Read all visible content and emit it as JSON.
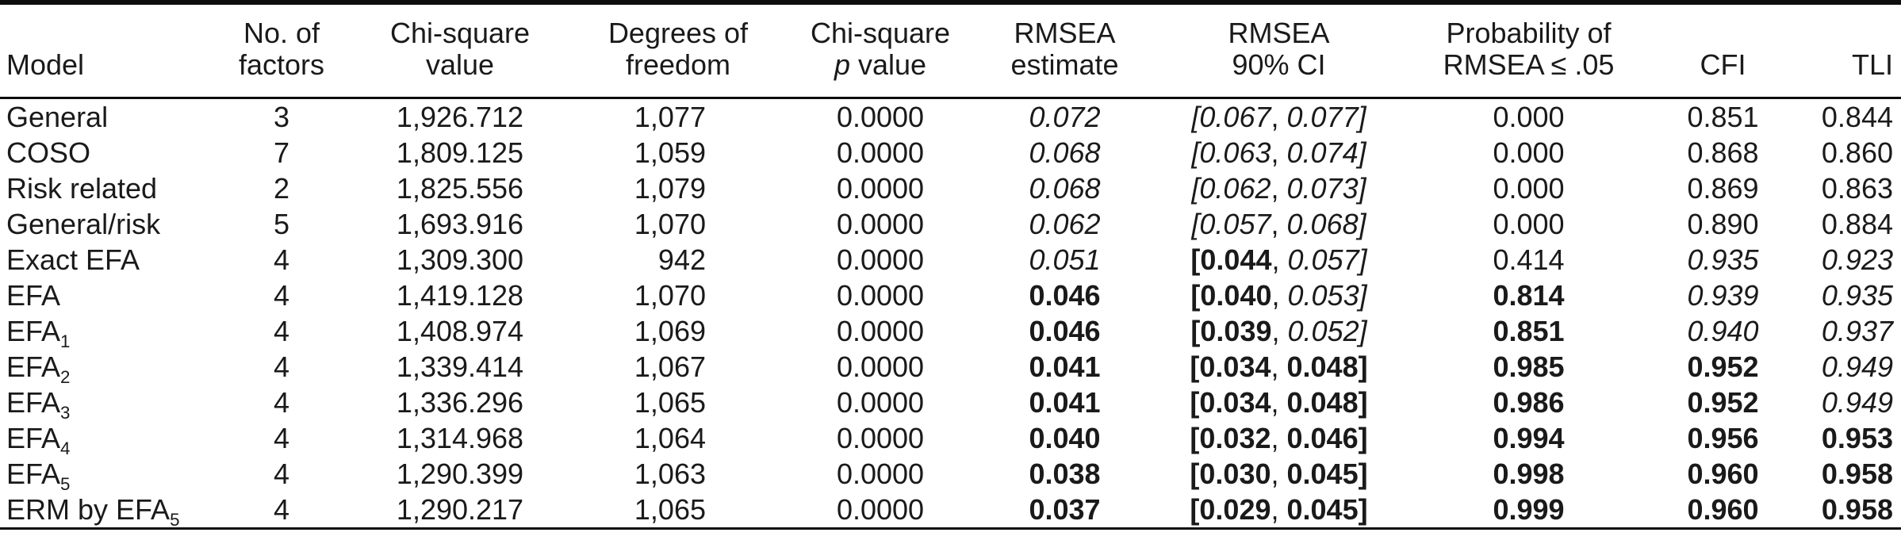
{
  "table": {
    "columns": [
      {
        "id": "model",
        "line1": "",
        "line2": "Model"
      },
      {
        "id": "factors",
        "line1": "No. of",
        "line2": "factors"
      },
      {
        "id": "chi_square",
        "line1": "Chi-square",
        "line2": "value"
      },
      {
        "id": "df",
        "line1": "Degrees of",
        "line2": "freedom"
      },
      {
        "id": "p",
        "line1": "Chi-square",
        "line2_italic": "p",
        "line2": " value"
      },
      {
        "id": "rmsea",
        "line1": "RMSEA",
        "line2": "estimate"
      },
      {
        "id": "ci",
        "line1": "RMSEA",
        "line2": "90% CI"
      },
      {
        "id": "prob",
        "line1": "Probability of",
        "line2": "RMSEA ≤ .05"
      },
      {
        "id": "cfi",
        "line1": "",
        "line2": "CFI"
      },
      {
        "id": "tli",
        "line1": "",
        "line2": "TLI"
      }
    ],
    "rows": [
      {
        "model": "General",
        "model_sub": "",
        "factors": "3",
        "chi_square": "1,926.712",
        "df": "1,077",
        "p": "0.0000",
        "rmsea": "0.072",
        "rmsea_style": "italic",
        "ci_low": "[0.067",
        "ci_low_style": "italic",
        "ci_sep": ", ",
        "ci_high": "0.077]",
        "ci_high_style": "italic",
        "prob": "0.000",
        "prob_style": "normal",
        "cfi": "0.851",
        "cfi_style": "normal",
        "tli": "0.844",
        "tli_style": "normal"
      },
      {
        "model": "COSO",
        "model_sub": "",
        "factors": "7",
        "chi_square": "1,809.125",
        "df": "1,059",
        "p": "0.0000",
        "rmsea": "0.068",
        "rmsea_style": "italic",
        "ci_low": "[0.063",
        "ci_low_style": "italic",
        "ci_sep": ", ",
        "ci_high": "0.074]",
        "ci_high_style": "italic",
        "prob": "0.000",
        "prob_style": "normal",
        "cfi": "0.868",
        "cfi_style": "normal",
        "tli": "0.860",
        "tli_style": "normal"
      },
      {
        "model": "Risk related",
        "model_sub": "",
        "factors": "2",
        "chi_square": "1,825.556",
        "df": "1,079",
        "p": "0.0000",
        "rmsea": "0.068",
        "rmsea_style": "italic",
        "ci_low": "[0.062",
        "ci_low_style": "italic",
        "ci_sep": ", ",
        "ci_high": "0.073]",
        "ci_high_style": "italic",
        "prob": "0.000",
        "prob_style": "normal",
        "cfi": "0.869",
        "cfi_style": "normal",
        "tli": "0.863",
        "tli_style": "normal"
      },
      {
        "model": "General/risk",
        "model_sub": "",
        "factors": "5",
        "chi_square": "1,693.916",
        "df": "1,070",
        "p": "0.0000",
        "rmsea": "0.062",
        "rmsea_style": "italic",
        "ci_low": "[0.057",
        "ci_low_style": "italic",
        "ci_sep": ", ",
        "ci_high": "0.068]",
        "ci_high_style": "italic",
        "prob": "0.000",
        "prob_style": "normal",
        "cfi": "0.890",
        "cfi_style": "normal",
        "tli": "0.884",
        "tli_style": "normal"
      },
      {
        "model": "Exact EFA",
        "model_sub": "",
        "factors": "4",
        "chi_square": "1,309.300",
        "df": "942",
        "p": "0.0000",
        "rmsea": "0.051",
        "rmsea_style": "italic",
        "ci_low": "[0.044",
        "ci_low_style": "bold",
        "ci_sep": ", ",
        "ci_high": "0.057]",
        "ci_high_style": "italic",
        "prob": "0.414",
        "prob_style": "normal",
        "cfi": "0.935",
        "cfi_style": "italic",
        "tli": "0.923",
        "tli_style": "italic"
      },
      {
        "model": "EFA",
        "model_sub": "",
        "factors": "4",
        "chi_square": "1,419.128",
        "df": "1,070",
        "p": "0.0000",
        "rmsea": "0.046",
        "rmsea_style": "bold",
        "ci_low": "[0.040",
        "ci_low_style": "bold",
        "ci_sep": ", ",
        "ci_high": "0.053]",
        "ci_high_style": "italic",
        "prob": "0.814",
        "prob_style": "bold",
        "cfi": "0.939",
        "cfi_style": "italic",
        "tli": "0.935",
        "tli_style": "italic"
      },
      {
        "model": "EFA",
        "model_sub": "1",
        "factors": "4",
        "chi_square": "1,408.974",
        "df": "1,069",
        "p": "0.0000",
        "rmsea": "0.046",
        "rmsea_style": "bold",
        "ci_low": "[0.039",
        "ci_low_style": "bold",
        "ci_sep": ", ",
        "ci_high": "0.052]",
        "ci_high_style": "italic",
        "prob": "0.851",
        "prob_style": "bold",
        "cfi": "0.940",
        "cfi_style": "italic",
        "tli": "0.937",
        "tli_style": "italic"
      },
      {
        "model": "EFA",
        "model_sub": "2",
        "factors": "4",
        "chi_square": "1,339.414",
        "df": "1,067",
        "p": "0.0000",
        "rmsea": "0.041",
        "rmsea_style": "bold",
        "ci_low": "[0.034",
        "ci_low_style": "bold",
        "ci_sep": ", ",
        "ci_high": "0.048]",
        "ci_high_style": "bold",
        "prob": "0.985",
        "prob_style": "bold",
        "cfi": "0.952",
        "cfi_style": "bold",
        "tli": "0.949",
        "tli_style": "italic"
      },
      {
        "model": "EFA",
        "model_sub": "3",
        "factors": "4",
        "chi_square": "1,336.296",
        "df": "1,065",
        "p": "0.0000",
        "rmsea": "0.041",
        "rmsea_style": "bold",
        "ci_low": "[0.034",
        "ci_low_style": "bold",
        "ci_sep": ", ",
        "ci_high": "0.048]",
        "ci_high_style": "bold",
        "prob": "0.986",
        "prob_style": "bold",
        "cfi": "0.952",
        "cfi_style": "bold",
        "tli": "0.949",
        "tli_style": "italic"
      },
      {
        "model": "EFA",
        "model_sub": "4",
        "factors": "4",
        "chi_square": "1,314.968",
        "df": "1,064",
        "p": "0.0000",
        "rmsea": "0.040",
        "rmsea_style": "bold",
        "ci_low": "[0.032",
        "ci_low_style": "bold",
        "ci_sep": ", ",
        "ci_high": "0.046]",
        "ci_high_style": "bold",
        "prob": "0.994",
        "prob_style": "bold",
        "cfi": "0.956",
        "cfi_style": "bold",
        "tli": "0.953",
        "tli_style": "bold"
      },
      {
        "model": "EFA",
        "model_sub": "5",
        "factors": "4",
        "chi_square": "1,290.399",
        "df": "1,063",
        "p": "0.0000",
        "rmsea": "0.038",
        "rmsea_style": "bold",
        "ci_low": "[0.030",
        "ci_low_style": "bold",
        "ci_sep": ", ",
        "ci_high": "0.045]",
        "ci_high_style": "bold",
        "prob": "0.998",
        "prob_style": "bold",
        "cfi": "0.960",
        "cfi_style": "bold",
        "tli": "0.958",
        "tli_style": "bold"
      },
      {
        "model": "ERM by EFA",
        "model_sub": "5",
        "factors": "4",
        "chi_square": "1,290.217",
        "df": "1,065",
        "p": "0.0000",
        "rmsea": "0.037",
        "rmsea_style": "bold",
        "ci_low": "[0.029",
        "ci_low_style": "bold",
        "ci_sep": ", ",
        "ci_high": "0.045]",
        "ci_high_style": "bold",
        "prob": "0.999",
        "prob_style": "bold",
        "cfi": "0.960",
        "cfi_style": "bold",
        "tli": "0.958",
        "tli_style": "bold"
      }
    ]
  }
}
